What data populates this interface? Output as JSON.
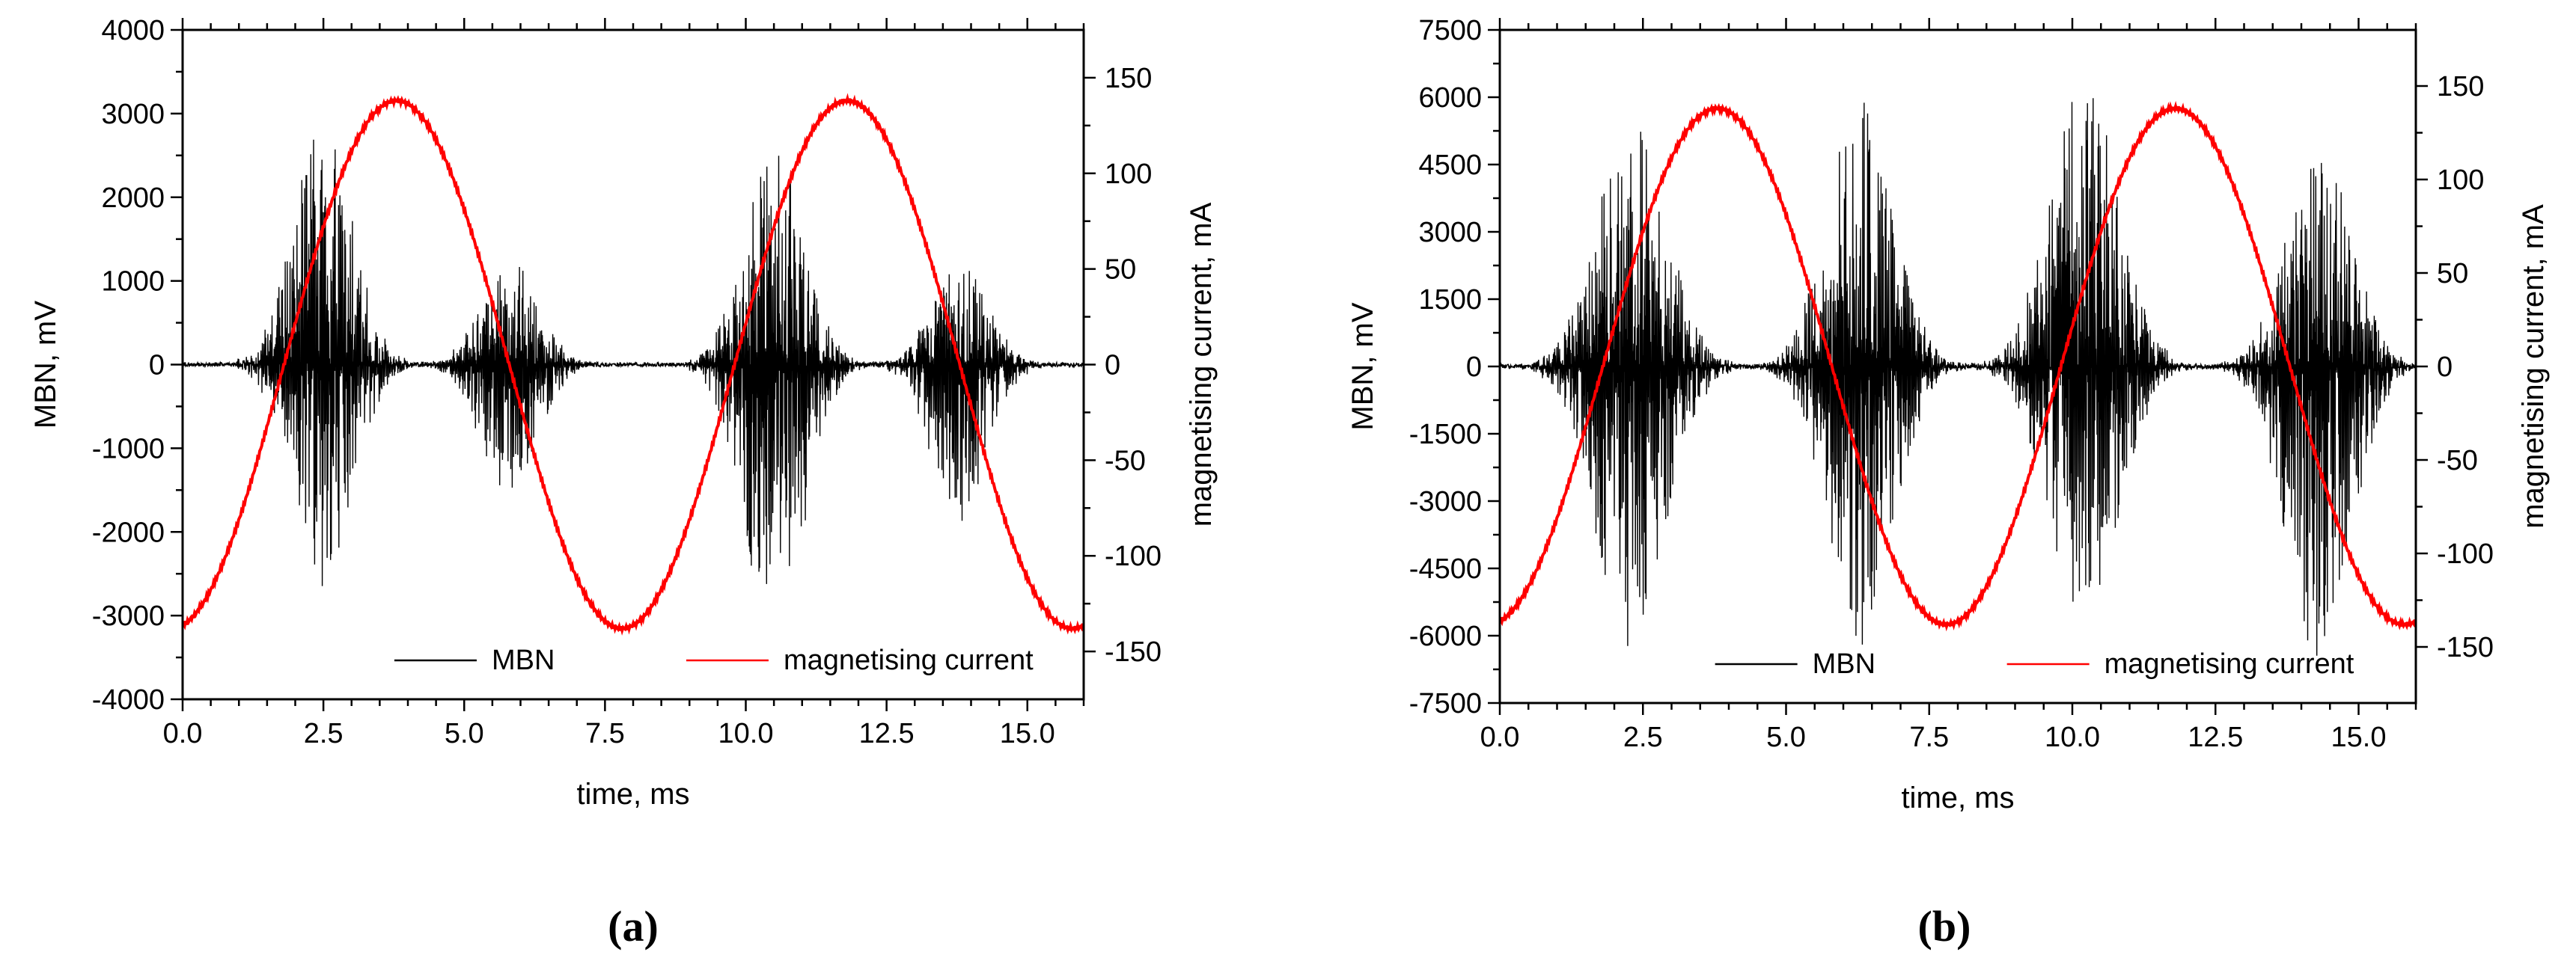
{
  "colors": {
    "mbn": "#000000",
    "current": "#ff0000",
    "axis": "#000000",
    "background": "#ffffff"
  },
  "chart_data": [
    {
      "type": "line",
      "panel_label": "(a)",
      "xlabel": "time, ms",
      "ylabel": "MBN, mV",
      "y2label": "magnetising current, mA",
      "xlim": [
        0,
        16
      ],
      "ylim": [
        -4000,
        4000
      ],
      "y2lim": [
        -175,
        175
      ],
      "xticks": [
        "0.0",
        "2.5",
        "5.0",
        "7.5",
        "10.0",
        "12.5",
        "15.0"
      ],
      "yticks": [
        "-4000",
        "-3000",
        "-2000",
        "-1000",
        "0",
        "1000",
        "2000",
        "3000",
        "4000"
      ],
      "y2ticks": [
        "-150",
        "-100",
        "-50",
        "0",
        "50",
        "100",
        "150"
      ],
      "legend": {
        "position": "bottom-center",
        "entries": [
          "MBN",
          "magnetising current"
        ]
      },
      "series": [
        {
          "name": "MBN",
          "color": "#000000",
          "axis": "left",
          "kind": "noise-bursts",
          "bursts": [
            {
              "center_ms": 2.5,
              "width_ms": 0.75,
              "max_mV": 2900,
              "min_mV": -2650
            },
            {
              "center_ms": 5.8,
              "width_ms": 0.7,
              "max_mV": 1250,
              "min_mV": -1600
            },
            {
              "center_ms": 10.5,
              "width_ms": 0.75,
              "max_mV": 2550,
              "min_mV": -3250
            },
            {
              "center_ms": 13.8,
              "width_ms": 0.7,
              "max_mV": 1200,
              "min_mV": -1900
            }
          ]
        },
        {
          "name": "magnetising current",
          "color": "#ff0000",
          "axis": "right",
          "kind": "sine",
          "amplitude_mA": 138,
          "period_ms": 8.0,
          "peak_times_ms": [
            3.8,
            11.8
          ],
          "trough_times_ms": [
            7.8,
            15.8
          ],
          "value_at_0_mA": -127
        }
      ]
    },
    {
      "type": "line",
      "panel_label": "(b)",
      "xlabel": "time, ms",
      "ylabel": "MBN, mV",
      "y2label": "magnetising current, mA",
      "xlim": [
        0,
        16
      ],
      "ylim": [
        -7500,
        7500
      ],
      "y2lim": [
        -180,
        180
      ],
      "xticks": [
        "0.0",
        "2.5",
        "5.0",
        "7.5",
        "10.0",
        "12.5",
        "15.0"
      ],
      "yticks": [
        "-7500",
        "-6000",
        "-4500",
        "-3000",
        "-1500",
        "0",
        "1500",
        "3000",
        "4500",
        "6000",
        "7500"
      ],
      "y2ticks": [
        "-150",
        "-100",
        "-50",
        "0",
        "50",
        "100",
        "150"
      ],
      "legend": {
        "position": "bottom-center",
        "entries": [
          "MBN",
          "magnetising current"
        ]
      },
      "series": [
        {
          "name": "MBN",
          "color": "#000000",
          "axis": "left",
          "kind": "noise-bursts",
          "bursts": [
            {
              "center_ms": 2.3,
              "width_ms": 0.85,
              "max_mV": 5500,
              "min_mV": -6300
            },
            {
              "center_ms": 6.3,
              "width_ms": 0.8,
              "max_mV": 6200,
              "min_mV": -6200
            },
            {
              "center_ms": 10.2,
              "width_ms": 0.85,
              "max_mV": 6400,
              "min_mV": -6100
            },
            {
              "center_ms": 14.3,
              "width_ms": 0.8,
              "max_mV": 5100,
              "min_mV": -6500
            }
          ]
        },
        {
          "name": "magnetising current",
          "color": "#ff0000",
          "axis": "right",
          "kind": "sine",
          "amplitude_mA": 138,
          "period_ms": 8.0,
          "peak_times_ms": [
            3.8,
            11.8
          ],
          "trough_times_ms": [
            7.8,
            15.8
          ],
          "value_at_0_mA": -128
        }
      ]
    }
  ]
}
